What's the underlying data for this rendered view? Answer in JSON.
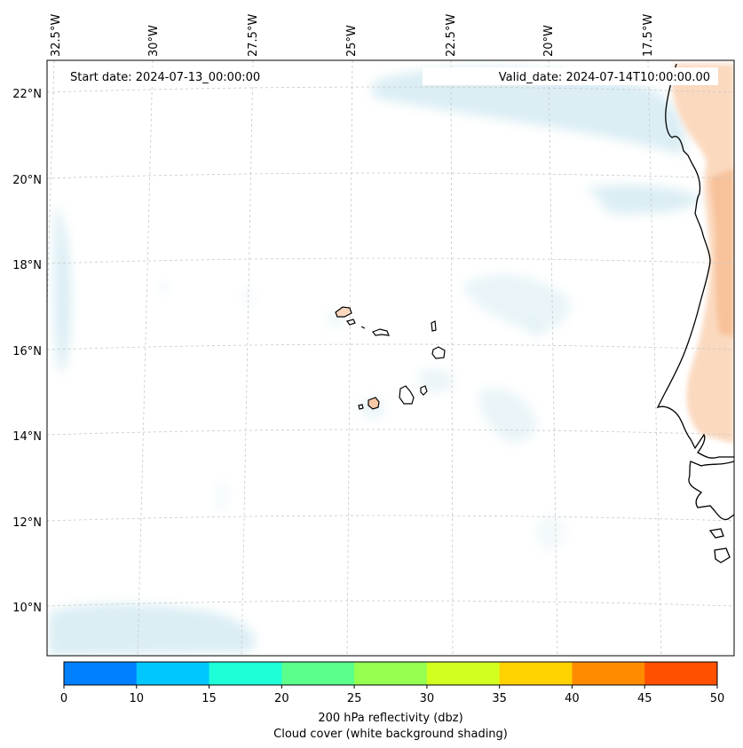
{
  "map": {
    "start_date": "Start date: 2024-07-13_00:00:00",
    "valid_date": "Valid_date: 2024-07-14T10:00:00.00",
    "longitude_labels": [
      "32.5°W",
      "30°W",
      "27.5°W",
      "25°W",
      "22.5°W",
      "20°W",
      "17.5°W"
    ],
    "latitude_labels": [
      "22°N",
      "20°N",
      "18°N",
      "16°N",
      "14°N",
      "12°N",
      "10°N"
    ]
  },
  "colorbar": {
    "ticks": [
      "0",
      "10",
      "15",
      "20",
      "25",
      "30",
      "35",
      "40",
      "45",
      "50"
    ],
    "colors": [
      "#0080ff",
      "#00c8ff",
      "#1effd8",
      "#5aff8c",
      "#96ff50",
      "#d2ff1e",
      "#ffd200",
      "#ff8c00",
      "#ff5000"
    ],
    "label_line1": "200 hPa reflectivity (dbz)",
    "label_line2": "Cloud cover (white background shading)"
  },
  "colors": {
    "cloud": "#cfe8f0",
    "reflectivity_low": "#fbd9bf",
    "coast": "#000000",
    "grid": "#cccccc"
  }
}
